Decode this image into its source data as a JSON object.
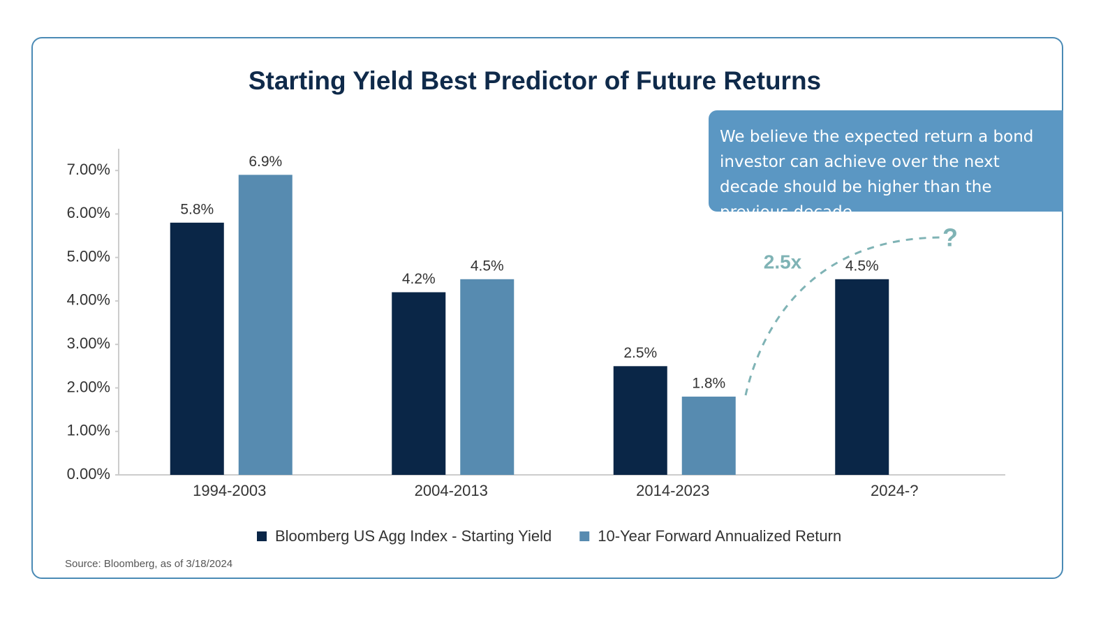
{
  "chart_data": {
    "type": "bar",
    "title": "Starting Yield Best Predictor of Future Returns",
    "categories": [
      "1994-2003",
      "2004-2013",
      "2014-2023",
      "2024-?"
    ],
    "series": [
      {
        "name": "Bloomberg US Agg Index - Starting Yield",
        "color": "#0a2647",
        "values": [
          5.8,
          4.2,
          2.5,
          4.5
        ],
        "value_labels": [
          "5.8%",
          "4.2%",
          "2.5%",
          "4.5%"
        ]
      },
      {
        "name": "10-Year Forward Annualized Return",
        "color": "#578bb0",
        "values": [
          6.9,
          4.5,
          1.8,
          null
        ],
        "value_labels": [
          "6.9%",
          "4.5%",
          "1.8%",
          null
        ]
      }
    ],
    "ylim": [
      0,
      7.5
    ],
    "yticks": [
      {
        "value": 0,
        "label": "0.00%"
      },
      {
        "value": 1,
        "label": "1.00%"
      },
      {
        "value": 2,
        "label": "2.00%"
      },
      {
        "value": 3,
        "label": "3.00%"
      },
      {
        "value": 4,
        "label": "4.00%"
      },
      {
        "value": 5,
        "label": "5.00%"
      },
      {
        "value": 6,
        "label": "6.00%"
      },
      {
        "value": 7,
        "label": "7.00%"
      }
    ],
    "grid": false,
    "annotations": {
      "callout": "We believe the expected return a bond investor can achieve over the next decade should be higher than the previous decade.",
      "multiplier": "2.5x",
      "question": "?"
    },
    "source": "Source: Bloomberg, as of 3/18/2024"
  }
}
